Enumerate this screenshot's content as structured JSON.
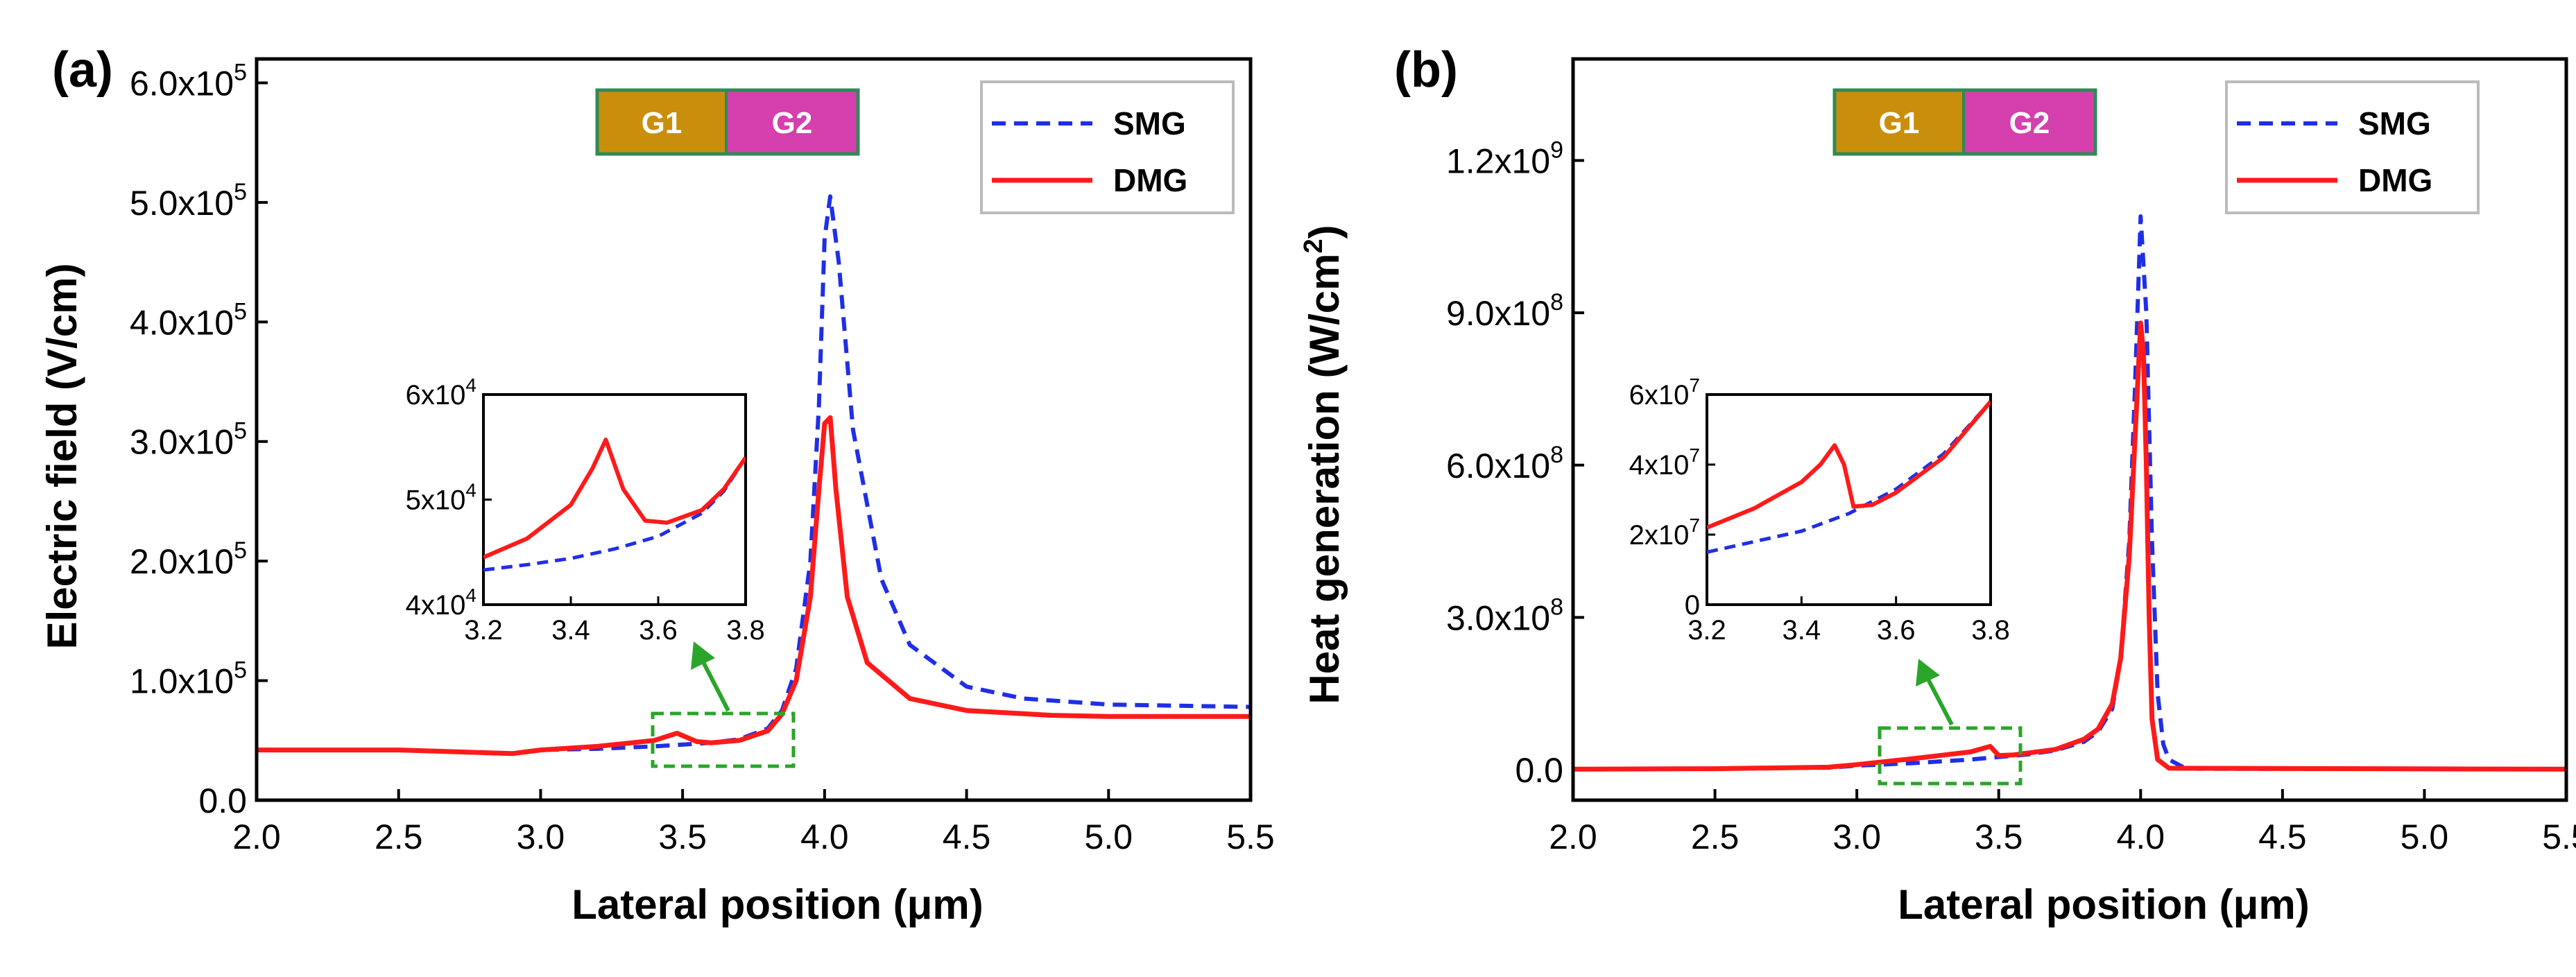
{
  "colors": {
    "smg": "#1f2fe6",
    "dmg": "#ff1a1a",
    "highlight": "#2aa52a",
    "gate_g1": "#c98f0c",
    "gate_g2": "#d63fae",
    "gate_border": "#2e8b57"
  },
  "gates": {
    "g1": "G1",
    "g2": "G2"
  },
  "legend": {
    "smg": "SMG",
    "dmg": "DMG"
  },
  "chart_data": [
    {
      "type": "line",
      "panel_label": "(a)",
      "xlabel": "Lateral position (μm)",
      "ylabel": "Electric field (V/cm)",
      "xlim": [
        2.0,
        5.5
      ],
      "ylim": [
        0,
        620000
      ],
      "xticks": [
        "2.0",
        "2.5",
        "3.0",
        "3.5",
        "4.0",
        "4.5",
        "5.0",
        "5.5"
      ],
      "yticks": [
        {
          "base": "0.0",
          "exp": ""
        },
        {
          "base": "1.0x10",
          "exp": "5"
        },
        {
          "base": "2.0x10",
          "exp": "5"
        },
        {
          "base": "3.0x10",
          "exp": "5"
        },
        {
          "base": "4.0x10",
          "exp": "5"
        },
        {
          "base": "5.0x10",
          "exp": "5"
        },
        {
          "base": "6.0x10",
          "exp": "5"
        }
      ],
      "series": [
        {
          "name": "SMG",
          "style": "dashed",
          "x": [
            2.0,
            2.5,
            2.9,
            3.0,
            3.2,
            3.4,
            3.6,
            3.7,
            3.8,
            3.85,
            3.9,
            3.95,
            3.98,
            4.0,
            4.02,
            4.05,
            4.1,
            4.2,
            4.3,
            4.5,
            4.7,
            5.0,
            5.5
          ],
          "y": [
            42000,
            42000,
            39000,
            42000,
            43000,
            45000,
            48000,
            51000,
            60000,
            75000,
            110000,
            200000,
            330000,
            470000,
            505000,
            450000,
            310000,
            185000,
            130000,
            95000,
            85000,
            80000,
            78000
          ]
        },
        {
          "name": "DMG",
          "style": "solid",
          "x": [
            2.0,
            2.5,
            2.9,
            3.0,
            3.2,
            3.4,
            3.48,
            3.55,
            3.6,
            3.7,
            3.8,
            3.85,
            3.9,
            3.95,
            3.98,
            4.0,
            4.02,
            4.04,
            4.08,
            4.15,
            4.3,
            4.5,
            4.8,
            5.0,
            5.5
          ],
          "y": [
            42000,
            42000,
            39000,
            42000,
            45000,
            50000,
            56000,
            49000,
            48000,
            50000,
            58000,
            72000,
            100000,
            170000,
            260000,
            315000,
            320000,
            260000,
            170000,
            115000,
            85000,
            75000,
            71000,
            70000,
            70000
          ]
        }
      ],
      "inset": {
        "xlim": [
          3.2,
          3.8
        ],
        "ylim": [
          40000,
          60000
        ],
        "xticks": [
          "3.2",
          "3.4",
          "3.6",
          "3.8"
        ],
        "yticks": [
          {
            "base": "4x10",
            "exp": "4"
          },
          {
            "base": "5x10",
            "exp": "4"
          },
          {
            "base": "6x10",
            "exp": "4"
          }
        ],
        "series": [
          {
            "name": "SMG",
            "x": [
              3.2,
              3.3,
              3.4,
              3.5,
              3.6,
              3.7,
              3.75,
              3.8
            ],
            "y": [
              43300,
              43800,
              44400,
              45300,
              46500,
              48700,
              50800,
              54000
            ]
          },
          {
            "name": "DMG",
            "x": [
              3.2,
              3.3,
              3.4,
              3.45,
              3.48,
              3.52,
              3.57,
              3.62,
              3.7,
              3.75,
              3.8
            ],
            "y": [
              44500,
              46300,
              49500,
              53000,
              55700,
              51000,
              48000,
              47800,
              49000,
              51000,
              54000
            ]
          }
        ]
      }
    },
    {
      "type": "line",
      "panel_label": "(b)",
      "xlabel": "Lateral position (μm)",
      "ylabel": "Heat generation (W/cm",
      "ylabel_exp": "2",
      "ylabel_end": ")",
      "xlim": [
        2.0,
        5.5
      ],
      "ylim": [
        -60000000,
        1400000000
      ],
      "xticks": [
        "2.0",
        "2.5",
        "3.0",
        "3.5",
        "4.0",
        "4.5",
        "5.0",
        "5.5"
      ],
      "yticks": [
        {
          "base": "0.0",
          "exp": ""
        },
        {
          "base": "3.0x10",
          "exp": "8"
        },
        {
          "base": "6.0x10",
          "exp": "8"
        },
        {
          "base": "9.0x10",
          "exp": "8"
        },
        {
          "base": "1.2x10",
          "exp": "9"
        }
      ],
      "series": [
        {
          "name": "SMG",
          "style": "dashed",
          "x": [
            2.0,
            2.5,
            2.9,
            3.0,
            3.2,
            3.4,
            3.6,
            3.7,
            3.8,
            3.85,
            3.9,
            3.93,
            3.96,
            3.98,
            4.0,
            4.02,
            4.04,
            4.06,
            4.08,
            4.1,
            4.15,
            4.2,
            5.5
          ],
          "y": [
            1000000,
            2000000,
            4000000,
            8000000,
            13000000,
            20000000,
            30000000,
            38000000,
            55000000,
            75000000,
            120000000,
            220000000,
            450000000,
            750000000,
            1090000000,
            900000000,
            450000000,
            150000000,
            50000000,
            20000000,
            5000000,
            2000000,
            1000000
          ]
        },
        {
          "name": "DMG",
          "style": "solid",
          "x": [
            2.0,
            2.5,
            2.9,
            3.0,
            3.2,
            3.4,
            3.47,
            3.5,
            3.55,
            3.7,
            3.8,
            3.85,
            3.9,
            3.93,
            3.96,
            3.98,
            4.0,
            4.01,
            4.02,
            4.03,
            4.04,
            4.06,
            4.1,
            5.5
          ],
          "y": [
            1000000,
            2000000,
            5000000,
            10000000,
            22000000,
            35000000,
            46000000,
            28000000,
            29000000,
            40000000,
            60000000,
            80000000,
            130000000,
            220000000,
            420000000,
            650000000,
            880000000,
            820000000,
            600000000,
            300000000,
            100000000,
            20000000,
            3000000,
            1000000
          ]
        }
      ],
      "inset": {
        "xlim": [
          3.2,
          3.8
        ],
        "ylim": [
          0,
          60000000
        ],
        "xticks": [
          "3.2",
          "3.4",
          "3.6",
          "3.8"
        ],
        "yticks": [
          {
            "base": "0",
            "exp": ""
          },
          {
            "base": "2x10",
            "exp": "7"
          },
          {
            "base": "4x10",
            "exp": "7"
          },
          {
            "base": "6x10",
            "exp": "7"
          }
        ],
        "series": [
          {
            "name": "SMG",
            "x": [
              3.2,
              3.3,
              3.4,
              3.5,
              3.6,
              3.7,
              3.8
            ],
            "y": [
              15000000,
              18000000,
              21000000,
              26000000,
              33000000,
              43000000,
              58000000
            ]
          },
          {
            "name": "DMG",
            "x": [
              3.2,
              3.3,
              3.4,
              3.44,
              3.47,
              3.49,
              3.51,
              3.55,
              3.6,
              3.7,
              3.8
            ],
            "y": [
              22000000,
              27500000,
              35000000,
              40000000,
              45500000,
              40000000,
              28000000,
              28500000,
              32000000,
              42000000,
              58000000
            ]
          }
        ]
      }
    }
  ]
}
